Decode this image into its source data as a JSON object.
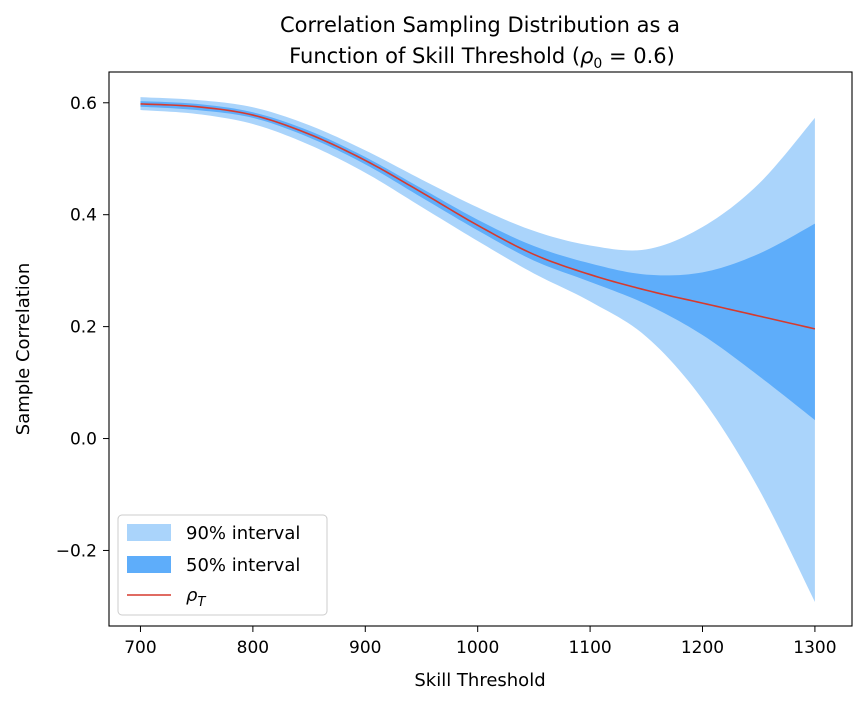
{
  "chart_data": {
    "type": "area",
    "title_line1": "Correlation Sampling Distribution as a",
    "title_line2": "Function of Skill Threshold (",
    "title_rho": "ρ",
    "title_sub": "0",
    "title_eq": " = 0.6)",
    "xlabel": "Skill Threshold",
    "ylabel": "Sample Correlation",
    "xlim": [
      672,
      1333
    ],
    "ylim": [
      -0.335,
      0.655
    ],
    "xticks": [
      700,
      800,
      900,
      1000,
      1100,
      1200,
      1300
    ],
    "yticks": [
      -0.2,
      0.0,
      0.2,
      0.4,
      0.6
    ],
    "ytick_labels": [
      "−0.2",
      "0.0",
      "0.2",
      "0.4",
      "0.6"
    ],
    "grid": false,
    "legend_position": "lower-left",
    "legend": [
      {
        "label": "90% interval",
        "color": "#aad4fb"
      },
      {
        "label": "50% interval",
        "color": "#5eadfa"
      },
      {
        "label_main": "ρ",
        "label_sub": "T",
        "color": "#d63a2e"
      }
    ],
    "x": [
      700,
      750,
      800,
      850,
      900,
      950,
      1000,
      1050,
      1100,
      1150,
      1200,
      1250,
      1300
    ],
    "series": [
      {
        "name": "90% interval",
        "lower": [
          0.587,
          0.58,
          0.562,
          0.525,
          0.475,
          0.414,
          0.353,
          0.295,
          0.245,
          0.182,
          0.07,
          -0.09,
          -0.292
        ],
        "upper": [
          0.61,
          0.605,
          0.592,
          0.56,
          0.515,
          0.463,
          0.413,
          0.371,
          0.345,
          0.338,
          0.378,
          0.455,
          0.573
        ]
      },
      {
        "name": "50% interval",
        "lower": [
          0.593,
          0.587,
          0.573,
          0.538,
          0.49,
          0.431,
          0.372,
          0.318,
          0.28,
          0.24,
          0.185,
          0.112,
          0.033
        ],
        "upper": [
          0.603,
          0.598,
          0.583,
          0.55,
          0.503,
          0.447,
          0.391,
          0.344,
          0.313,
          0.293,
          0.297,
          0.33,
          0.384
        ]
      },
      {
        "name": "ρ_T",
        "values": [
          0.598,
          0.593,
          0.578,
          0.544,
          0.497,
          0.44,
          0.381,
          0.329,
          0.293,
          0.265,
          0.242,
          0.219,
          0.196
        ]
      }
    ]
  }
}
